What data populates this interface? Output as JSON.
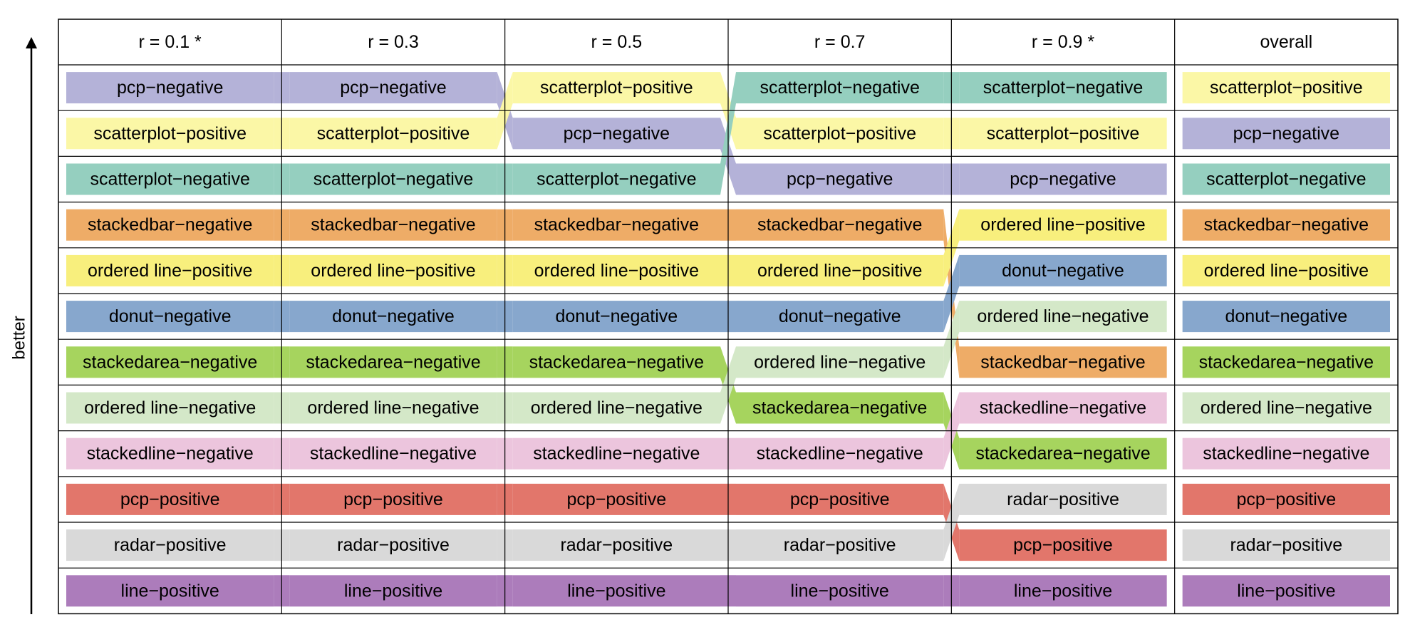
{
  "chart_data": {
    "type": "table",
    "title": "",
    "ylabel": "better",
    "columns": [
      "r = 0.1 *",
      "r = 0.3",
      "r = 0.5",
      "r = 0.7",
      "r = 0.9 *",
      "overall"
    ],
    "rankings": [
      [
        "pcp−negative",
        "scatterplot−positive",
        "scatterplot−negative",
        "stackedbar−negative",
        "ordered line−positive",
        "donut−negative",
        "stackedarea−negative",
        "ordered line−negative",
        "stackedline−negative",
        "pcp−positive",
        "radar−positive",
        "line−positive"
      ],
      [
        "pcp−negative",
        "scatterplot−positive",
        "scatterplot−negative",
        "stackedbar−negative",
        "ordered line−positive",
        "donut−negative",
        "stackedarea−negative",
        "ordered line−negative",
        "stackedline−negative",
        "pcp−positive",
        "radar−positive",
        "line−positive"
      ],
      [
        "scatterplot−positive",
        "pcp−negative",
        "scatterplot−negative",
        "stackedbar−negative",
        "ordered line−positive",
        "donut−negative",
        "stackedarea−negative",
        "ordered line−negative",
        "stackedline−negative",
        "pcp−positive",
        "radar−positive",
        "line−positive"
      ],
      [
        "scatterplot−negative",
        "scatterplot−positive",
        "pcp−negative",
        "stackedbar−negative",
        "ordered line−positive",
        "donut−negative",
        "ordered line−negative",
        "stackedarea−negative",
        "stackedline−negative",
        "pcp−positive",
        "radar−positive",
        "line−positive"
      ],
      [
        "scatterplot−negative",
        "scatterplot−positive",
        "pcp−negative",
        "ordered line−positive",
        "donut−negative",
        "ordered line−negative",
        "stackedbar−negative",
        "stackedline−negative",
        "stackedarea−negative",
        "radar−positive",
        "pcp−positive",
        "line−positive"
      ],
      [
        "scatterplot−positive",
        "pcp−negative",
        "scatterplot−negative",
        "stackedbar−negative",
        "ordered line−positive",
        "donut−negative",
        "stackedarea−negative",
        "ordered line−negative",
        "stackedline−negative",
        "pcp−positive",
        "radar−positive",
        "line−positive"
      ]
    ],
    "category_colors": {
      "pcp−negative": "#b4b2d8",
      "scatterplot−positive": "#fbf7a6",
      "scatterplot−negative": "#95cfbf",
      "stackedbar−negative": "#eeac67",
      "ordered line−positive": "#f8ef7d",
      "donut−negative": "#87a7cd",
      "stackedarea−negative": "#a6d45e",
      "ordered line−negative": "#d4e8c8",
      "stackedline−negative": "#ecc5dd",
      "pcp−positive": "#e2766b",
      "radar−positive": "#d9d9d9",
      "line−positive": "#ac7cbb"
    },
    "no_ribbon_before_column": [
      5
    ]
  }
}
